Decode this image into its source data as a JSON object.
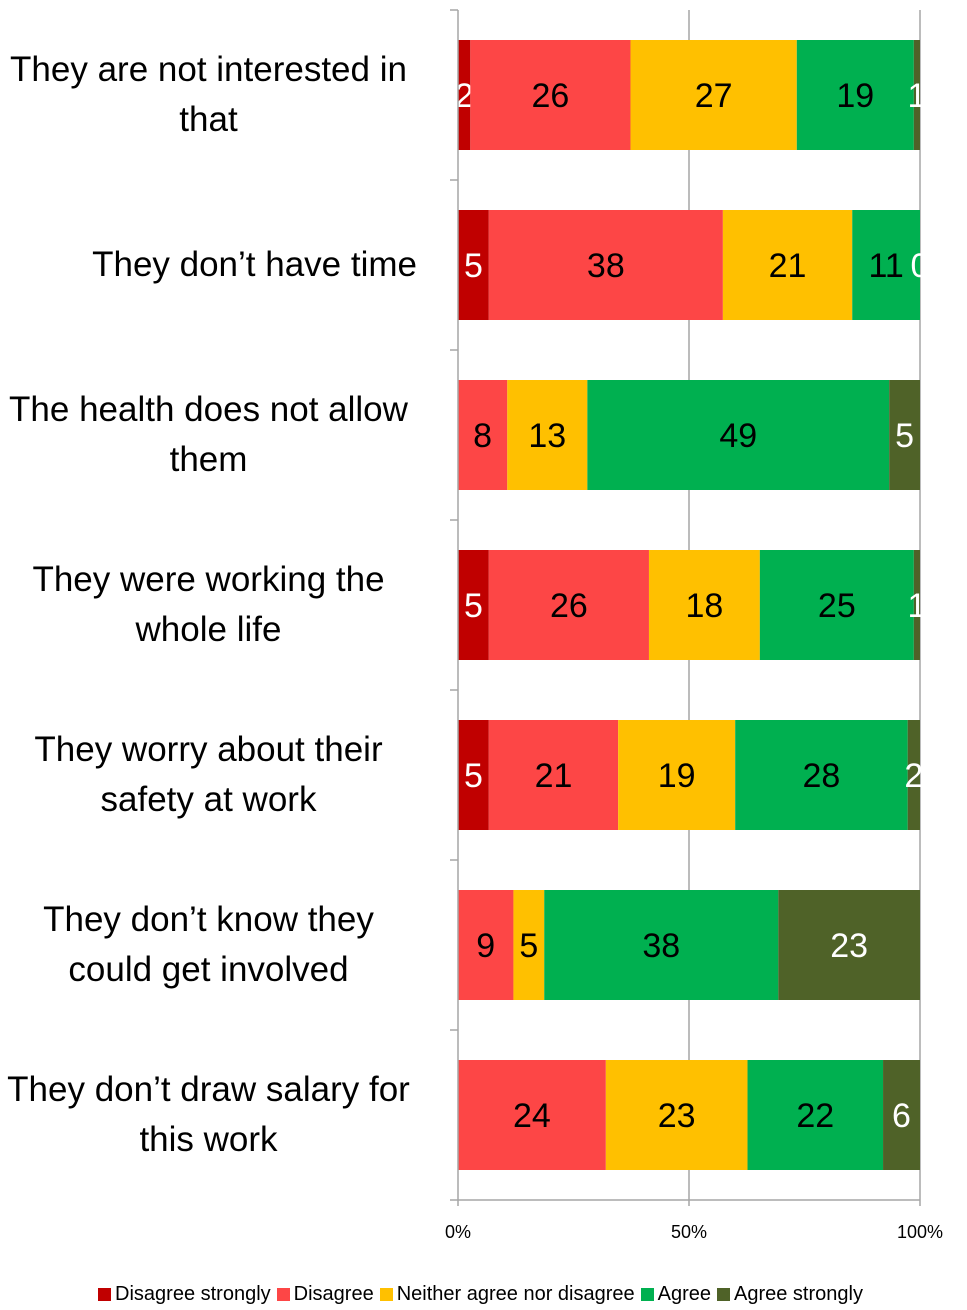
{
  "chart_data": {
    "type": "bar",
    "orientation": "horizontal",
    "stacked_percent": true,
    "categories": [
      "They are not interested in that",
      "They don’t have time",
      "The health does not allow them",
      "They were working the whole life",
      "They worry about their safety at work",
      "They don’t know they could get involved",
      "They don’t draw salary for this work"
    ],
    "series": [
      {
        "name": "Disagree strongly",
        "color": "#c00000",
        "label_color": "#ffffff",
        "values": [
          2,
          5,
          0,
          5,
          5,
          0,
          0
        ]
      },
      {
        "name": "Disagree",
        "color": "#fd4646",
        "label_color": "#000000",
        "values": [
          26,
          38,
          8,
          26,
          21,
          9,
          24
        ]
      },
      {
        "name": "Neither agree nor disagree",
        "color": "#ffc000",
        "label_color": "#000000",
        "values": [
          27,
          21,
          13,
          18,
          19,
          5,
          23
        ]
      },
      {
        "name": "Agree",
        "color": "#00b050",
        "label_color": "#000000",
        "values": [
          19,
          11,
          49,
          25,
          28,
          38,
          22
        ]
      },
      {
        "name": "Agree strongly",
        "color": "#4f6228",
        "label_color": "#ffffff",
        "values": [
          1,
          0,
          5,
          1,
          2,
          23,
          6
        ]
      }
    ],
    "xlim": [
      0,
      100
    ],
    "xticks": [
      {
        "value": 0,
        "label": "0%"
      },
      {
        "value": 50,
        "label": "50%"
      },
      {
        "value": 100,
        "label": "100%"
      }
    ],
    "grid": true,
    "legend": "bottom"
  }
}
